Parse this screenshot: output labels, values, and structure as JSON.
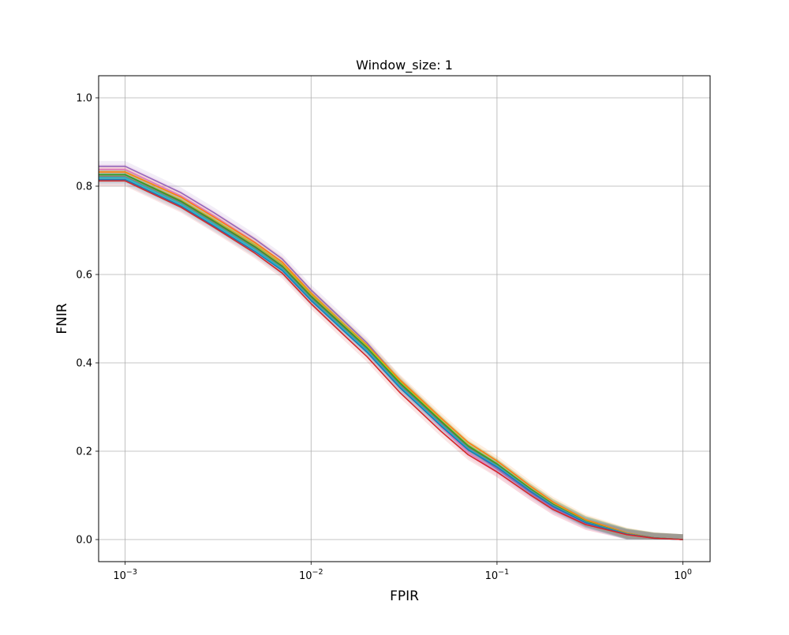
{
  "chart_data": {
    "type": "line",
    "title": "Window_size: 1",
    "xlabel": "FPIR",
    "ylabel": "FNIR",
    "xscale": "log",
    "xlim": [
      0.00072,
      1.4
    ],
    "ylim": [
      -0.05,
      1.05
    ],
    "grid": true,
    "x_ticks": [
      {
        "value": 0.001,
        "base": "10",
        "exp": "−3"
      },
      {
        "value": 0.01,
        "base": "10",
        "exp": "−2"
      },
      {
        "value": 0.1,
        "base": "10",
        "exp": "−1"
      },
      {
        "value": 1,
        "base": "10",
        "exp": "0"
      }
    ],
    "y_ticks": [
      {
        "value": 0.0,
        "label": "0.0"
      },
      {
        "value": 0.2,
        "label": "0.2"
      },
      {
        "value": 0.4,
        "label": "0.4"
      },
      {
        "value": 0.6,
        "label": "0.6"
      },
      {
        "value": 0.8,
        "label": "0.8"
      },
      {
        "value": 1.0,
        "label": "1.0"
      }
    ],
    "x": [
      0.00072,
      0.001,
      0.002,
      0.003,
      0.005,
      0.007,
      0.01,
      0.015,
      0.02,
      0.03,
      0.05,
      0.07,
      0.1,
      0.15,
      0.2,
      0.3,
      0.5,
      0.7,
      1.0
    ],
    "band_color": "#cccccc",
    "series": [
      {
        "color": "#9467bd",
        "values": [
          0.845,
          0.845,
          0.785,
          0.74,
          0.68,
          0.635,
          0.565,
          0.495,
          0.445,
          0.36,
          0.265,
          0.205,
          0.16,
          0.107,
          0.072,
          0.037,
          0.012,
          0.003,
          0.0
        ]
      },
      {
        "color": "#e377c2",
        "values": [
          0.838,
          0.838,
          0.778,
          0.733,
          0.673,
          0.628,
          0.555,
          0.482,
          0.432,
          0.348,
          0.255,
          0.197,
          0.154,
          0.102,
          0.068,
          0.034,
          0.011,
          0.003,
          0.0
        ]
      },
      {
        "color": "#ff7f0e",
        "values": [
          0.832,
          0.832,
          0.775,
          0.73,
          0.672,
          0.628,
          0.558,
          0.488,
          0.44,
          0.362,
          0.275,
          0.22,
          0.178,
          0.122,
          0.085,
          0.045,
          0.015,
          0.004,
          0.0
        ]
      },
      {
        "color": "#bcbd22",
        "values": [
          0.826,
          0.826,
          0.768,
          0.724,
          0.667,
          0.623,
          0.555,
          0.487,
          0.438,
          0.358,
          0.27,
          0.214,
          0.172,
          0.117,
          0.081,
          0.042,
          0.014,
          0.004,
          0.0
        ]
      },
      {
        "color": "#8c564b",
        "values": [
          0.826,
          0.826,
          0.766,
          0.721,
          0.663,
          0.619,
          0.551,
          0.483,
          0.434,
          0.354,
          0.267,
          0.211,
          0.17,
          0.115,
          0.079,
          0.041,
          0.013,
          0.004,
          0.0
        ]
      },
      {
        "color": "#2ca02c",
        "values": [
          0.826,
          0.826,
          0.765,
          0.72,
          0.662,
          0.618,
          0.55,
          0.482,
          0.434,
          0.355,
          0.268,
          0.212,
          0.171,
          0.116,
          0.08,
          0.041,
          0.013,
          0.004,
          0.0
        ]
      },
      {
        "color": "#7f7f7f",
        "values": [
          0.822,
          0.822,
          0.762,
          0.717,
          0.659,
          0.615,
          0.546,
          0.478,
          0.43,
          0.35,
          0.263,
          0.208,
          0.168,
          0.113,
          0.078,
          0.04,
          0.013,
          0.004,
          0.0
        ]
      },
      {
        "color": "#17becf",
        "values": [
          0.819,
          0.819,
          0.759,
          0.714,
          0.656,
          0.612,
          0.543,
          0.475,
          0.427,
          0.347,
          0.26,
          0.205,
          0.166,
          0.111,
          0.076,
          0.039,
          0.012,
          0.003,
          0.0
        ]
      },
      {
        "color": "#1f77b4",
        "values": [
          0.815,
          0.815,
          0.755,
          0.71,
          0.652,
          0.609,
          0.541,
          0.472,
          0.424,
          0.344,
          0.257,
          0.203,
          0.164,
          0.11,
          0.075,
          0.038,
          0.012,
          0.003,
          0.0
        ]
      },
      {
        "color": "#d62728",
        "values": [
          0.812,
          0.812,
          0.752,
          0.707,
          0.648,
          0.603,
          0.534,
          0.463,
          0.414,
          0.333,
          0.245,
          0.192,
          0.153,
          0.102,
          0.068,
          0.034,
          0.011,
          0.003,
          0.0
        ]
      }
    ]
  }
}
